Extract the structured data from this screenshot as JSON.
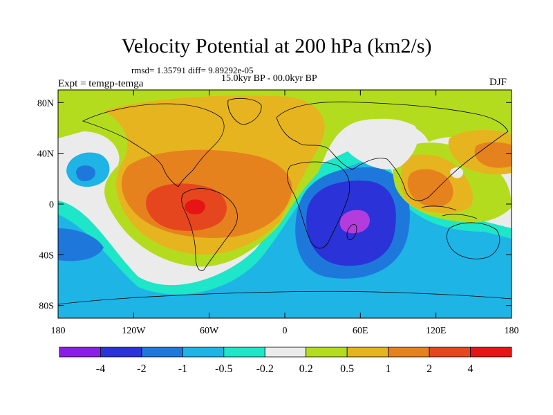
{
  "title": "Velocity Potential at 200 hPa (km2/s)",
  "stats": "rmsd= 1.35791 diff= 9.89292e-05",
  "period": "15.0kyr BP - 00.0kyr BP",
  "experiment": "Expt = temgp-temga",
  "season": "DJF",
  "map": {
    "lon_ticks": [
      {
        "value": -180,
        "label": "180"
      },
      {
        "value": -120,
        "label": "120W"
      },
      {
        "value": -60,
        "label": "60W"
      },
      {
        "value": 0,
        "label": "0"
      },
      {
        "value": 60,
        "label": "60E"
      },
      {
        "value": 120,
        "label": "120E"
      },
      {
        "value": 180,
        "label": "180"
      }
    ],
    "lat_ticks": [
      {
        "value": 80,
        "label": "80N"
      },
      {
        "value": 40,
        "label": "40N"
      },
      {
        "value": 0,
        "label": "0"
      },
      {
        "value": -40,
        "label": "40S"
      },
      {
        "value": -80,
        "label": "80S"
      }
    ],
    "lon_range": [
      -180,
      180
    ],
    "lat_range": [
      -90,
      90
    ]
  },
  "colorbar": {
    "colors": [
      "#8b1ee6",
      "#2b32d8",
      "#1e78dc",
      "#1eb4e6",
      "#1ee6c8",
      "#ebebeb",
      "#b4dc1e",
      "#e6b41e",
      "#e6821e",
      "#e6461e",
      "#e61414"
    ],
    "labels": [
      "-4",
      "-2",
      "-1",
      "-0.5",
      "-0.2",
      "0.2",
      "0.5",
      "1",
      "2",
      "4"
    ]
  },
  "colors": {
    "background": "#ebebeb",
    "strong_negative": "#2b32d8",
    "min_core": "#b43cdc",
    "coast": "#000000"
  }
}
